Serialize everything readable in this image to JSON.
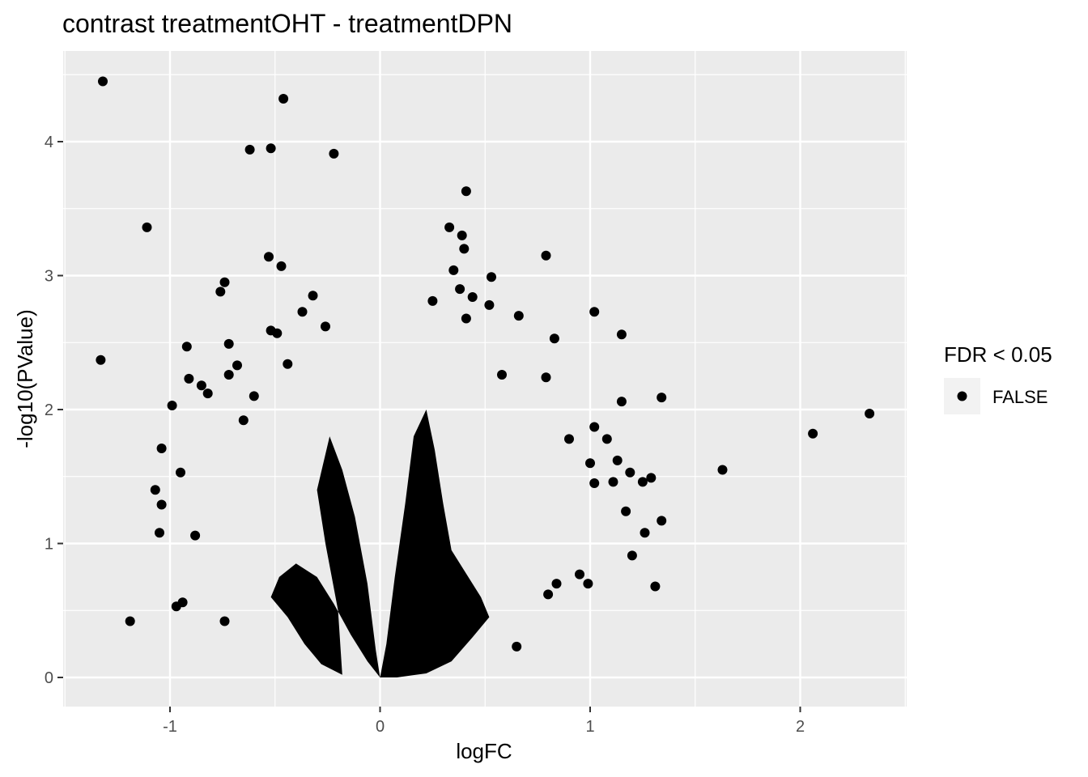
{
  "chart_data": {
    "type": "scatter",
    "title": "contrast treatmentOHT - treatmentDPN",
    "xlabel": "logFC",
    "ylabel": "-log10(PValue)",
    "xlim": [
      -1.5,
      2.5
    ],
    "ylim": [
      -0.2,
      4.6
    ],
    "x_ticks": [
      -1,
      0,
      1,
      2
    ],
    "x_tick_labels": [
      "-1",
      "0",
      "1",
      "2"
    ],
    "y_ticks": [
      0,
      1,
      2,
      3,
      4
    ],
    "y_tick_labels": [
      "0",
      "1",
      "2",
      "3",
      "4"
    ],
    "grid": true,
    "panel_background": "#ebebeb",
    "grid_color": "#ffffff",
    "point_color": "#000000",
    "legend": {
      "title": "FDR < 0.05",
      "position": "right",
      "entries": [
        {
          "label": "FALSE",
          "color": "#000000"
        }
      ]
    },
    "series": [
      {
        "name": "FALSE",
        "note_dense_cloud": "thousands of additional points form a dense V-shaped cloud around logFC=0 from 0 up to ~2.3",
        "points": [
          [
            -1.32,
            4.45
          ],
          [
            -0.46,
            4.32
          ],
          [
            -0.62,
            3.94
          ],
          [
            -0.52,
            3.95
          ],
          [
            -0.22,
            3.91
          ],
          [
            -1.11,
            3.36
          ],
          [
            -0.53,
            3.14
          ],
          [
            -0.47,
            3.07
          ],
          [
            -0.74,
            2.95
          ],
          [
            -0.76,
            2.88
          ],
          [
            -0.37,
            2.73
          ],
          [
            -0.26,
            2.62
          ],
          [
            -0.52,
            2.59
          ],
          [
            -0.49,
            2.57
          ],
          [
            -0.72,
            2.49
          ],
          [
            -0.92,
            2.47
          ],
          [
            -1.33,
            2.37
          ],
          [
            -0.68,
            2.33
          ],
          [
            -0.44,
            2.34
          ],
          [
            -0.72,
            2.26
          ],
          [
            -0.91,
            2.23
          ],
          [
            -0.85,
            2.18
          ],
          [
            -0.82,
            2.12
          ],
          [
            -0.99,
            2.03
          ],
          [
            -1.04,
            1.71
          ],
          [
            -0.95,
            1.53
          ],
          [
            -1.07,
            1.4
          ],
          [
            -1.04,
            1.29
          ],
          [
            -1.05,
            1.08
          ],
          [
            -0.97,
            0.53
          ],
          [
            -0.94,
            0.56
          ],
          [
            -1.19,
            0.42
          ],
          [
            -0.74,
            0.42
          ],
          [
            -0.88,
            1.06
          ],
          [
            -0.65,
            1.92
          ],
          [
            -0.6,
            2.1
          ],
          [
            -0.32,
            2.85
          ],
          [
            0.41,
            3.63
          ],
          [
            0.33,
            3.36
          ],
          [
            0.39,
            3.3
          ],
          [
            0.4,
            3.2
          ],
          [
            0.35,
            3.04
          ],
          [
            0.53,
            2.99
          ],
          [
            0.38,
            2.9
          ],
          [
            0.44,
            2.84
          ],
          [
            0.25,
            2.81
          ],
          [
            0.52,
            2.78
          ],
          [
            0.66,
            2.7
          ],
          [
            0.79,
            3.15
          ],
          [
            0.41,
            2.68
          ],
          [
            0.83,
            2.53
          ],
          [
            1.02,
            2.73
          ],
          [
            1.15,
            2.56
          ],
          [
            1.34,
            2.09
          ],
          [
            1.15,
            2.06
          ],
          [
            0.79,
            2.24
          ],
          [
            0.58,
            2.26
          ],
          [
            1.63,
            1.55
          ],
          [
            2.06,
            1.82
          ],
          [
            2.33,
            1.97
          ],
          [
            1.02,
            1.87
          ],
          [
            1.08,
            1.78
          ],
          [
            0.9,
            1.78
          ],
          [
            1.19,
            1.53
          ],
          [
            1.29,
            1.49
          ],
          [
            1.25,
            1.46
          ],
          [
            1.11,
            1.46
          ],
          [
            1.02,
            1.45
          ],
          [
            1.13,
            1.62
          ],
          [
            1.0,
            1.6
          ],
          [
            1.34,
            1.17
          ],
          [
            1.17,
            1.24
          ],
          [
            1.26,
            1.08
          ],
          [
            1.2,
            0.91
          ],
          [
            1.31,
            0.68
          ],
          [
            0.99,
            0.7
          ],
          [
            0.95,
            0.77
          ],
          [
            0.65,
            0.23
          ],
          [
            0.8,
            0.62
          ],
          [
            0.84,
            0.7
          ]
        ]
      }
    ]
  }
}
